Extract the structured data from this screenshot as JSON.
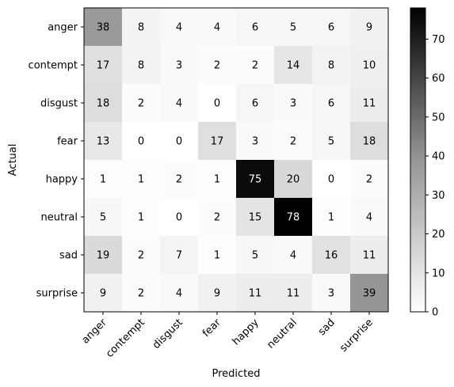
{
  "chart_data": {
    "type": "heatmap",
    "title": "",
    "xlabel": "Predicted",
    "ylabel": "Actual",
    "x_categories": [
      "anger",
      "contempt",
      "disgust",
      "fear",
      "happy",
      "neutral",
      "sad",
      "surprise"
    ],
    "y_categories": [
      "anger",
      "contempt",
      "disgust",
      "fear",
      "happy",
      "neutral",
      "sad",
      "surprise"
    ],
    "values": [
      [
        38,
        8,
        4,
        4,
        6,
        5,
        6,
        9
      ],
      [
        17,
        8,
        3,
        2,
        2,
        14,
        8,
        10
      ],
      [
        18,
        2,
        4,
        0,
        6,
        3,
        6,
        11
      ],
      [
        13,
        0,
        0,
        17,
        3,
        2,
        5,
        18
      ],
      [
        1,
        1,
        2,
        1,
        75,
        20,
        0,
        2
      ],
      [
        5,
        1,
        0,
        2,
        15,
        78,
        1,
        4
      ],
      [
        19,
        2,
        7,
        1,
        5,
        4,
        16,
        11
      ],
      [
        9,
        2,
        4,
        9,
        11,
        11,
        3,
        39
      ]
    ],
    "colormap": "Greys",
    "color_range": [
      0,
      78
    ],
    "colorbar_ticks": [
      0,
      10,
      20,
      30,
      40,
      50,
      60,
      70
    ]
  }
}
